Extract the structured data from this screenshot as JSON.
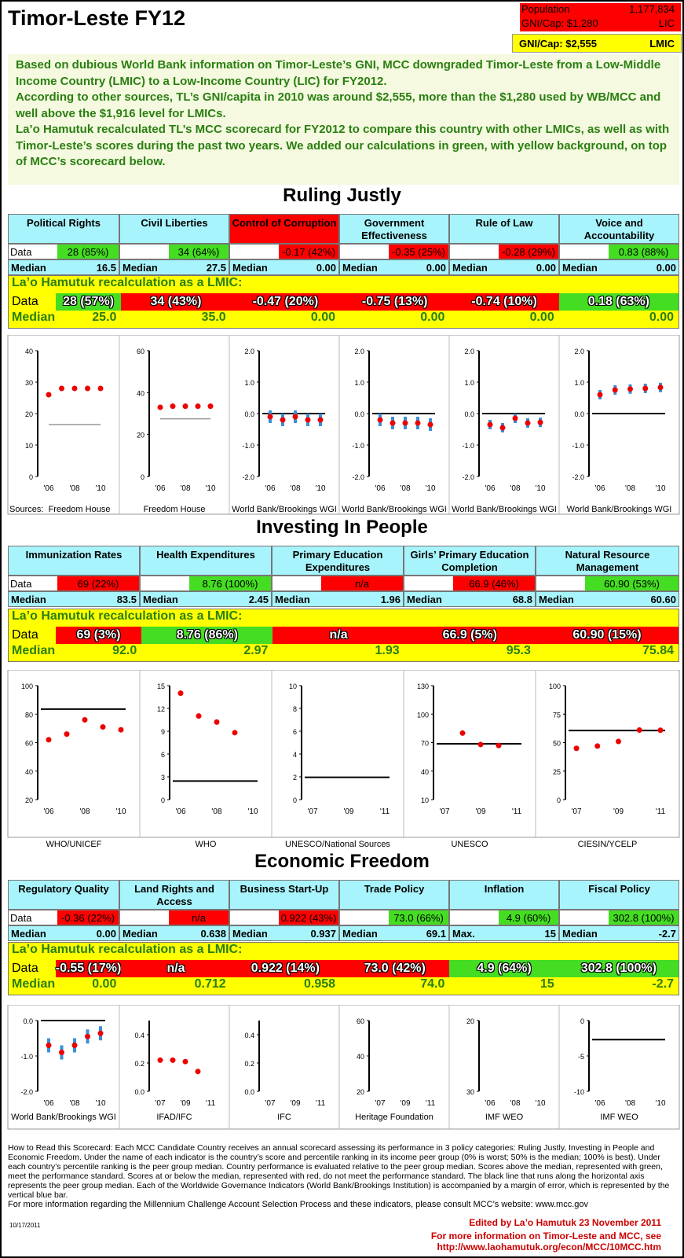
{
  "header": {
    "title": "Timor-Leste FY12",
    "population_label": "Population",
    "population": "1,177,834",
    "gni_label": "GNI/Cap: $1,280",
    "gni_class": "LIC",
    "gni_alt_label": "GNI/Cap: $2,555",
    "gni_alt_class": "LMIC"
  },
  "intro": [
    "Based on dubious World Bank information on Timor-Leste’s GNI, MCC downgraded Timor-Leste from a Low-Middle Income Country (LMIC) to a Low-Income Country (LIC) for FY2012.",
    "According to other sources, TL’s GNI/capita in 2010 was around $2,555, more than the $1,280 used by WB/MCC and well above the $1,916 level for LMICs.",
    "La’o Hamutuk recalculated TL’s MCC scorecard for FY2012 to compare this country with other LMICs, as well as with Timor-Leste’s scores during the past two years. We added our calculations in green, with yellow background, on top of MCC’s scorecard below."
  ],
  "labels": {
    "data": "Data",
    "median": "Median",
    "max": "Max.",
    "lmic_header": "La’o Hamutuk recalculation as a LMIC:"
  },
  "sections": [
    {
      "title": "Ruling Justly",
      "indicators": [
        {
          "name": "Political Rights",
          "data": "28 (85%)",
          "pass": true,
          "median": "16.5",
          "lmic_data": "28 (57%)",
          "lmic_pass": true,
          "lmic_median": "25.0"
        },
        {
          "name": "Civil Liberties",
          "data": "34 (64%)",
          "pass": true,
          "median": "27.5",
          "lmic_data": "34 (43%)",
          "lmic_pass": false,
          "lmic_median": "35.0"
        },
        {
          "name": "Control of Corruption",
          "data": "-0.17 (42%)",
          "pass": false,
          "median": "0.00",
          "lmic_data": "-0.47 (20%)",
          "lmic_pass": false,
          "lmic_median": "0.00",
          "hot": true
        },
        {
          "name": "Government Effectiveness",
          "data": "-0.35 (25%)",
          "pass": false,
          "median": "0.00",
          "lmic_data": "-0.75 (13%)",
          "lmic_pass": false,
          "lmic_median": "0.00"
        },
        {
          "name": "Rule of Law",
          "data": "-0.28 (29%)",
          "pass": false,
          "median": "0.00",
          "lmic_data": "-0.74 (10%)",
          "lmic_pass": false,
          "lmic_median": "0.00"
        },
        {
          "name": "Voice and Accountability",
          "data": "0.83 (88%)",
          "pass": true,
          "median": "0.00",
          "lmic_data": "0.18 (63%)",
          "lmic_pass": true,
          "lmic_median": "0.00"
        }
      ],
      "sources": [
        "Sources:",
        "Freedom House",
        "Freedom House",
        "World Bank/Brookings WGI",
        "World Bank/Brookings WGI",
        "World Bank/Brookings WGI",
        "World Bank/Brookings WGI"
      ]
    },
    {
      "title": "Investing In People",
      "indicators": [
        {
          "name": "Immunization Rates",
          "data": "69 (22%)",
          "pass": false,
          "median": "83.5",
          "lmic_data": "69 (3%)",
          "lmic_pass": false,
          "lmic_median": "92.0"
        },
        {
          "name": "Health Expenditures",
          "data": "8.76 (100%)",
          "pass": true,
          "median": "2.45",
          "lmic_data": "8.76 (86%)",
          "lmic_pass": true,
          "lmic_median": "2.97"
        },
        {
          "name": "Primary Education Expenditures",
          "data": "n/a",
          "pass": false,
          "median": "1.96",
          "lmic_data": "n/a",
          "lmic_pass": false,
          "lmic_median": "1.93"
        },
        {
          "name": "Girls’ Primary Education Completion",
          "data": "66.9 (46%)",
          "pass": false,
          "median": "68.8",
          "lmic_data": "66.9 (5%)",
          "lmic_pass": false,
          "lmic_median": "95.3"
        },
        {
          "name": "Natural Resource Management",
          "data": "60.90 (53%)",
          "pass": true,
          "median": "60.60",
          "lmic_data": "60.90 (15%)",
          "lmic_pass": false,
          "lmic_median": "75.84"
        }
      ],
      "sources": [
        "WHO/UNICEF",
        "WHO",
        "UNESCO/National Sources",
        "UNESCO",
        "CIESIN/YCELP"
      ]
    },
    {
      "title": "Economic Freedom",
      "indicators": [
        {
          "name": "Regulatory Quality",
          "data": "-0.36 (22%)",
          "pass": false,
          "median": "0.00",
          "lmic_data": "-0.55 (17%)",
          "lmic_pass": false,
          "lmic_median": "0.00"
        },
        {
          "name": "Land Rights and Access",
          "data": "n/a",
          "pass": false,
          "median": "0.638",
          "lmic_data": "n/a",
          "lmic_pass": false,
          "lmic_median": "0.712"
        },
        {
          "name": "Business Start-Up",
          "data": "0.922 (43%)",
          "pass": false,
          "median": "0.937",
          "lmic_data": "0.922 (14%)",
          "lmic_pass": false,
          "lmic_median": "0.958"
        },
        {
          "name": "Trade Policy",
          "data": "73.0 (66%)",
          "pass": true,
          "median": "69.1",
          "lmic_data": "73.0 (42%)",
          "lmic_pass": false,
          "lmic_median": "74.0"
        },
        {
          "name": "Inflation",
          "data": "4.9 (60%)",
          "pass": true,
          "median": "15",
          "median_label": "Max.",
          "lmic_data": "4.9 (64%)",
          "lmic_pass": true,
          "lmic_median": "15"
        },
        {
          "name": "Fiscal Policy",
          "data": "302.8 (100%)",
          "pass": true,
          "median": "-2.7",
          "lmic_data": "302.8 (100%)",
          "lmic_pass": true,
          "lmic_median": "-2.7"
        }
      ],
      "sources": [
        "World Bank/Brookings WGI",
        "IFAD/IFC",
        "IFC",
        "Heritage Foundation",
        "IMF WEO",
        "IMF WEO"
      ]
    }
  ],
  "chart_data": [
    {
      "type": "scatter",
      "title": "Political Rights",
      "x": [
        "'06",
        "'07",
        "'08",
        "'09",
        "'10"
      ],
      "y": [
        26,
        28,
        28,
        28,
        28
      ],
      "median": 16.5,
      "ylim": [
        0,
        40
      ],
      "yticks": [
        "0",
        "10",
        "20",
        "30",
        "40"
      ],
      "xticks": [
        "'06",
        "'08",
        "'10"
      ]
    },
    {
      "type": "scatter",
      "title": "Civil Liberties",
      "x": [
        "'06",
        "'07",
        "'08",
        "'09",
        "'10"
      ],
      "y": [
        33,
        33.5,
        33.5,
        33.5,
        33.5
      ],
      "median": 27.5,
      "ylim": [
        0,
        60
      ],
      "yticks": [
        "0",
        "20",
        "40",
        "60"
      ],
      "xticks": [
        "'06",
        "'08",
        "'10"
      ]
    },
    {
      "type": "scatter",
      "title": "Control of Corruption",
      "x": [
        "'06",
        "'07",
        "'08",
        "'09",
        "'10"
      ],
      "y": [
        -0.1,
        -0.2,
        -0.1,
        -0.2,
        -0.2
      ],
      "err": 0.2,
      "median": 0,
      "ylim": [
        -2,
        2
      ],
      "yticks": [
        "-2.0",
        "-1.0",
        "0.0",
        "1.0",
        "2.0"
      ],
      "xticks": [
        "'06",
        "'08",
        "'10"
      ]
    },
    {
      "type": "scatter",
      "title": "Government Effectiveness",
      "x": [
        "'06",
        "'07",
        "'08",
        "'09",
        "'10"
      ],
      "y": [
        -0.2,
        -0.3,
        -0.3,
        -0.3,
        -0.35
      ],
      "err": 0.2,
      "median": 0,
      "ylim": [
        -2,
        2
      ],
      "yticks": [
        "-2.0",
        "-1.0",
        "0.0",
        "1.0",
        "2.0"
      ],
      "xticks": [
        "'06",
        "'08",
        "'10"
      ]
    },
    {
      "type": "scatter",
      "title": "Rule of Law",
      "x": [
        "'06",
        "'07",
        "'08",
        "'09",
        "'10"
      ],
      "y": [
        -0.35,
        -0.45,
        -0.15,
        -0.3,
        -0.28
      ],
      "err": 0.15,
      "median": 0,
      "ylim": [
        -2,
        2
      ],
      "yticks": [
        "-2.0",
        "-1.0",
        "0.0",
        "1.0",
        "2.0"
      ],
      "xticks": [
        "'06",
        "'08",
        "'10"
      ]
    },
    {
      "type": "scatter",
      "title": "Voice and Accountability",
      "x": [
        "'06",
        "'07",
        "'08",
        "'09",
        "'10"
      ],
      "y": [
        0.6,
        0.75,
        0.78,
        0.8,
        0.83
      ],
      "err": 0.15,
      "median": 0,
      "ylim": [
        -2,
        2
      ],
      "yticks": [
        "-2.0",
        "-1.0",
        "0.0",
        "1.0",
        "2.0"
      ],
      "xticks": [
        "'06",
        "'08",
        "'10"
      ]
    },
    {
      "type": "scatter",
      "title": "Immunization Rates",
      "x": [
        "'06",
        "'07",
        "'08",
        "'09",
        "'10"
      ],
      "y": [
        62,
        66,
        76,
        71,
        69
      ],
      "median": 83.5,
      "ylim": [
        20,
        100
      ],
      "yticks": [
        "20",
        "40",
        "60",
        "80",
        "100"
      ],
      "xticks": [
        "'06",
        "'08",
        "'10"
      ]
    },
    {
      "type": "scatter",
      "title": "Health Expenditures",
      "x": [
        "'06",
        "'07",
        "'08",
        "'09",
        "'10"
      ],
      "y": [
        14,
        11,
        10.2,
        8.8,
        null
      ],
      "median": 2.45,
      "ylim": [
        0,
        15
      ],
      "yticks": [
        "0",
        "3",
        "6",
        "9",
        "12",
        "15"
      ],
      "xticks": [
        "'06",
        "'08",
        "'10"
      ]
    },
    {
      "type": "scatter",
      "title": "Primary Education Expenditures",
      "x": [
        "'07",
        "'08",
        "'09",
        "'10",
        "'11"
      ],
      "y": [
        null,
        null,
        null,
        null,
        null
      ],
      "median": 1.96,
      "ylim": [
        0,
        10
      ],
      "yticks": [
        "0",
        "2",
        "4",
        "6",
        "8",
        "10"
      ],
      "xticks": [
        "'07",
        "'09",
        "'11"
      ]
    },
    {
      "type": "scatter",
      "title": "Girls’ Primary Education Completion",
      "x": [
        "'07",
        "'08",
        "'09",
        "'10",
        "'11"
      ],
      "y": [
        null,
        80,
        68,
        67,
        null
      ],
      "median": 68.8,
      "ylim": [
        10,
        130
      ],
      "yticks": [
        "10",
        "40",
        "70",
        "100",
        "130"
      ],
      "xticks": [
        "'07",
        "'09",
        "'11"
      ]
    },
    {
      "type": "scatter",
      "title": "Natural Resource Management",
      "x": [
        "'07",
        "'08",
        "'09",
        "'10",
        "'11"
      ],
      "y": [
        45,
        47,
        51,
        61,
        60.9
      ],
      "median": 60.6,
      "ylim": [
        0,
        100
      ],
      "yticks": [
        "0",
        "25",
        "50",
        "75",
        "100"
      ],
      "xticks": [
        "'07",
        "'09",
        "'11"
      ]
    },
    {
      "type": "scatter",
      "title": "Regulatory Quality",
      "x": [
        "'06",
        "'07",
        "'08",
        "'09",
        "'10"
      ],
      "y": [
        -0.7,
        -0.9,
        -0.7,
        -0.45,
        -0.36
      ],
      "err": 0.2,
      "median": 0,
      "ylim": [
        -2,
        0
      ],
      "yticks": [
        "-2.0",
        "-1.0",
        "0.0"
      ],
      "xticks": [
        "'06",
        "'08",
        "'10"
      ]
    },
    {
      "type": "scatter",
      "title": "Land Rights and Access",
      "x": [
        "'07",
        "'08",
        "'09",
        "'10",
        "'11"
      ],
      "y": [
        0.22,
        0.22,
        0.21,
        0.14,
        null
      ],
      "median": null,
      "ylim": [
        0,
        0.5
      ],
      "yticks": [
        "0.0",
        "0.2",
        "0.4"
      ],
      "xticks": [
        "'07",
        "'09",
        "'11"
      ]
    },
    {
      "type": "scatter",
      "title": "Business Start-Up",
      "x": [
        "'07",
        "'08",
        "'09",
        "'10",
        "'11"
      ],
      "y": [
        null,
        null,
        null,
        null,
        null
      ],
      "median": null,
      "ylim": [
        0,
        0.5
      ],
      "yticks": [
        "0.0",
        "0.2",
        "0.4"
      ],
      "xticks": [
        "'07",
        "'09",
        "'11"
      ]
    },
    {
      "type": "scatter",
      "title": "Trade Policy",
      "x": [
        "'07",
        "'08",
        "'09",
        "'10",
        "'11"
      ],
      "y": [
        null,
        null,
        null,
        null,
        null
      ],
      "median": null,
      "ylim": [
        20,
        60
      ],
      "yticks": [
        "20",
        "40",
        "60"
      ],
      "xticks": [
        "'07",
        "'09",
        "'11"
      ]
    },
    {
      "type": "scatter",
      "title": "Inflation",
      "x": [
        "'06",
        "'07",
        "'08",
        "'09",
        "'10"
      ],
      "y": [
        null,
        null,
        null,
        null,
        null
      ],
      "median": 15,
      "ylim": [
        30,
        20
      ],
      "yticks": [
        "30",
        "20"
      ],
      "xticks": [
        "'06",
        "'08",
        "'10"
      ]
    },
    {
      "type": "scatter",
      "title": "Fiscal Policy",
      "x": [
        "'06",
        "'07",
        "'08",
        "'09",
        "'10"
      ],
      "y": [
        null,
        null,
        null,
        null,
        null
      ],
      "median": -2.7,
      "ylim": [
        -10,
        0
      ],
      "yticks": [
        "-10",
        "-5",
        "0"
      ],
      "xticks": [
        "'06",
        "'08",
        "'10"
      ]
    }
  ],
  "footer": {
    "howto": "How to Read this Scorecard: Each MCC Candidate Country receives an annual scorecard assessing its performance in 3 policy categories: Ruling Justly, Investing in People and Economic Freedom. Under the name of each indicator is the country’s score and percentile ranking in its income peer group (0% is worst; 50% is the median; 100% is best). Under each country’s percentile ranking is the peer group median. Country performance is evaluated relative to the peer group median. Scores above the median, represented with green, meet the performance standard. Scores at or below the median, represented with red, do not meet the performance standard. The black line that runs along the horizontal axis represents the peer group median. Each of the Worldwide Governance Indicators (World Bank/Brookings Institution) is accompanied by a margin of error, which is represented by the vertical blue bar.",
    "more": "For more information regarding the Millennium Challenge Account Selection Process and these indicators, please consult MCC’s website: www.mcc.gov",
    "date": "10/17/2011",
    "edited": "Edited by La’o Hamutuk 23 November 2011",
    "more_tl": "For more information on Timor-Leste and MCC, see http://www.laohamutuk.org/econ/MCC/10MCC.htm"
  },
  "colors": {
    "pass": "#44dd22",
    "fail": "#ff0000",
    "header": "#a8f4fc",
    "lmic_bg": "#ffff00",
    "lmic_text": "#2a7f10",
    "dot": "#ee0000",
    "err": "#3a8fd8"
  }
}
